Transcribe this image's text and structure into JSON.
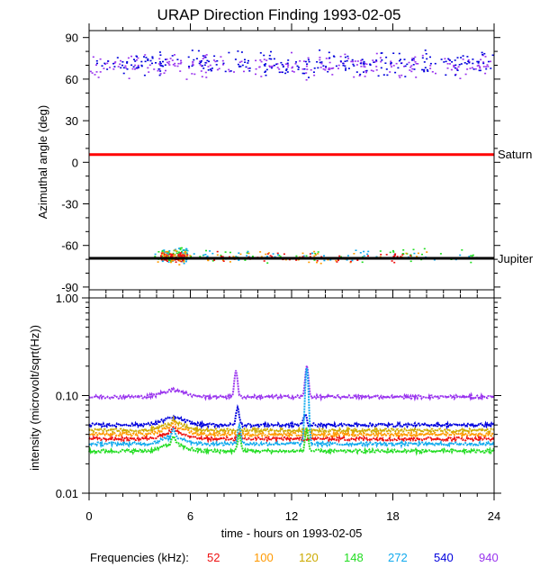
{
  "title": "URAP Direction Finding  1993-02-05",
  "colors": {
    "52": "#ee1111",
    "100": "#ff9900",
    "120": "#ccaa00",
    "148": "#22dd22",
    "272": "#11aaee",
    "540": "#0000dd",
    "940": "#9933ee"
  },
  "frequencies": {
    "label": "Frequencies (kHz):",
    "values": [
      "52",
      "100",
      "120",
      "148",
      "272",
      "540",
      "940"
    ]
  },
  "chart_data": [
    {
      "type": "scatter",
      "xlabel": "",
      "ylabel": "Azimuthal angle (deg)",
      "xlim": [
        0,
        24
      ],
      "ylim": [
        -92,
        95
      ],
      "yticks": [
        "90",
        "60",
        "30",
        "0",
        "-30",
        "-60",
        "-90"
      ],
      "reference_lines": [
        {
          "label": "Saturn",
          "y": 4,
          "color": "#ff0000"
        },
        {
          "label": "Jupiter",
          "y": -70,
          "color": "#000000"
        }
      ],
      "series": [
        {
          "frequency": "940",
          "band_center": 70,
          "band_spread": 8,
          "x_range": [
            0,
            24
          ]
        },
        {
          "frequency": "540",
          "band_center": 72,
          "band_spread": 8,
          "x_range": [
            0,
            24
          ]
        },
        {
          "frequency": "148",
          "band_center": -67,
          "band_spread": 5,
          "x_range": [
            3.8,
            23
          ]
        },
        {
          "frequency": "272",
          "band_center": -67,
          "band_spread": 5,
          "x_range": [
            3.8,
            23
          ]
        },
        {
          "frequency": "100",
          "band_center": -68,
          "band_spread": 4,
          "x_range": [
            4,
            20
          ]
        },
        {
          "frequency": "52",
          "band_center": -68,
          "band_spread": 3,
          "x_range": [
            7,
            19
          ]
        }
      ]
    },
    {
      "type": "line",
      "xlabel": "time - hours on 1993-02-05",
      "ylabel": "intensity (microvolt/sqrt(Hz))",
      "xlim": [
        0,
        24
      ],
      "ylim": [
        0.01,
        1.0
      ],
      "yscale": "log",
      "xticks": [
        "0",
        "6",
        "12",
        "18",
        "24"
      ],
      "yticks": [
        "1.00",
        "0.10",
        "0.01"
      ],
      "series": [
        {
          "frequency": "940",
          "baseline": 0.097,
          "spikes": [
            [
              8.7,
              0.18
            ],
            [
              12.9,
              0.2
            ]
          ]
        },
        {
          "frequency": "540",
          "baseline": 0.05,
          "spikes": [
            [
              8.8,
              0.075
            ],
            [
              12.8,
              0.065
            ]
          ]
        },
        {
          "frequency": "120",
          "baseline": 0.044,
          "spikes": [
            [
              5.0,
              0.05
            ]
          ]
        },
        {
          "frequency": "100",
          "baseline": 0.04,
          "spikes": [
            [
              5.0,
              0.046
            ]
          ]
        },
        {
          "frequency": "52",
          "baseline": 0.036,
          "spikes": [
            [
              5.0,
              0.042
            ],
            [
              8.9,
              0.04
            ]
          ]
        },
        {
          "frequency": "272",
          "baseline": 0.032,
          "spikes": [
            [
              5.0,
              0.04
            ],
            [
              8.9,
              0.05
            ],
            [
              12.9,
              0.19
            ]
          ]
        },
        {
          "frequency": "148",
          "baseline": 0.027,
          "spikes": [
            [
              5.0,
              0.034
            ],
            [
              8.9,
              0.04
            ],
            [
              12.9,
              0.045
            ]
          ]
        }
      ]
    }
  ]
}
